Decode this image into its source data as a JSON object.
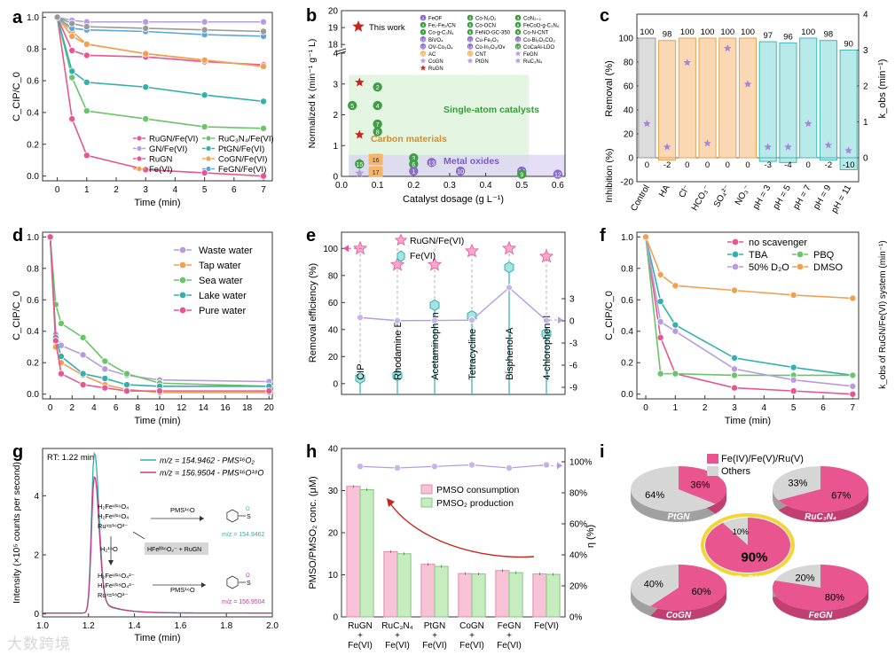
{
  "watermark": "大数跨境",
  "colors": {
    "pink": "#e8558f",
    "violet": "#b79be0",
    "green": "#6ac46a",
    "orange": "#f0a050",
    "teal": "#31b0ad",
    "blue": "#5aa6dc",
    "gray": "#9a9a9a",
    "red": "#c8261c",
    "star_pink": "#f9a8cf",
    "teal_light": "#b9eaea",
    "orange_light": "#fbd8b4",
    "gray_light": "#dcdcdc",
    "pink_light": "#f8c3d6",
    "green_light": "#c7ecc0"
  },
  "panels": {
    "a": "a",
    "b": "b",
    "c": "c",
    "d": "d",
    "e": "e",
    "f": "f",
    "g": "g",
    "h": "h",
    "i": "i"
  },
  "chart_data": [
    {
      "id": "a",
      "type": "line",
      "xlabel": "Time (min)",
      "ylabel": "C_CIP/C_0",
      "xlim": [
        -0.5,
        7.3
      ],
      "ylim": [
        -0.03,
        1.03
      ],
      "xticks": [
        0,
        1,
        2,
        3,
        4,
        5,
        6,
        7
      ],
      "yticks": [
        0.0,
        0.2,
        0.4,
        0.6,
        0.8,
        1.0
      ],
      "x": [
        0,
        0.5,
        1,
        3,
        5,
        7
      ],
      "series": [
        {
          "name": "RuGN/Fe(VI)",
          "color": "#e8558f",
          "values": [
            1.0,
            0.36,
            0.13,
            0.04,
            0.02,
            0.0
          ]
        },
        {
          "name": "GN/Fe(VI)",
          "color": "#b79be0",
          "values": [
            1.0,
            0.98,
            0.97,
            0.97,
            0.97,
            0.97
          ]
        },
        {
          "name": "RuGN",
          "color": "#e8558f",
          "values": [
            1.0,
            0.79,
            0.76,
            0.75,
            0.72,
            0.7
          ]
        },
        {
          "name": "Fe(VI)",
          "color": "#f0a050",
          "values": [
            1.0,
            0.91,
            0.83,
            0.77,
            0.73,
            0.69
          ]
        },
        {
          "name": "RuC3N4/Fe(VI)",
          "color": "#6ac46a",
          "values": [
            1.0,
            0.62,
            0.41,
            0.36,
            0.31,
            0.3
          ]
        },
        {
          "name": "PtGN/Fe(VI)",
          "color": "#31b0ad",
          "values": [
            1.0,
            0.66,
            0.59,
            0.56,
            0.51,
            0.47
          ]
        },
        {
          "name": "CoGN/Fe(VI)",
          "color": "#f0a050",
          "values": [
            1.0,
            0.88,
            0.83,
            0.77,
            0.73,
            0.69
          ]
        },
        {
          "name": "FeGN/Fe(VI)",
          "color": "#5aa6dc",
          "values": [
            1.0,
            0.93,
            0.92,
            0.91,
            0.89,
            0.88
          ]
        },
        {
          "name": "",
          "color": "#9a9a9a",
          "values": [
            1.0,
            0.96,
            0.94,
            0.93,
            0.92,
            0.91
          ]
        }
      ],
      "legend": [
        "RuGN/Fe(VI)",
        "RuC₃N₄/Fe(VI)",
        "GN/Fe(VI)",
        "PtGN/Fe(VI)",
        "RuGN",
        "CoGN/Fe(VI)",
        "Fe(VI)",
        "FeGN/Fe(VI)"
      ]
    },
    {
      "id": "b",
      "type": "scatter",
      "xlabel": "Catalyst dosage (g L⁻¹)",
      "ylabel": "Normalized k (min⁻¹ g⁻¹ L)",
      "xlim": [
        0,
        0.62
      ],
      "xticks": [
        0.0,
        0.1,
        0.2,
        0.3,
        0.4,
        0.5,
        0.6
      ],
      "yticks_low": [
        0,
        1,
        2,
        3,
        4
      ],
      "yticks_high": [
        18,
        19,
        20
      ],
      "regions": [
        "Single-atom catalysts",
        "Carbon materials",
        "Metal oxides"
      ],
      "this_work": "This work",
      "points": [
        {
          "x": 0.05,
          "y": 3.05,
          "label": "",
          "kind": "star"
        },
        {
          "x": 0.05,
          "y": 1.35,
          "label": "",
          "kind": "star"
        },
        {
          "x": 0.05,
          "y": 0.45,
          "label": "",
          "kind": "star"
        },
        {
          "x": 0.05,
          "y": 0.1,
          "label": "",
          "kind": "star"
        },
        {
          "x": 0.1,
          "y": 2.9,
          "label": "2",
          "kind": "green"
        },
        {
          "x": 0.1,
          "y": 2.3,
          "label": "4",
          "kind": "green"
        },
        {
          "x": 0.1,
          "y": 1.7,
          "label": "7",
          "kind": "green"
        },
        {
          "x": 0.1,
          "y": 1.45,
          "label": "8",
          "kind": "green"
        },
        {
          "x": 0.03,
          "y": 2.3,
          "label": "5",
          "kind": "green"
        },
        {
          "x": 0.05,
          "y": 0.4,
          "label": "15",
          "kind": "green"
        },
        {
          "x": 0.095,
          "y": 0.55,
          "label": "16",
          "kind": "orange"
        },
        {
          "x": 0.095,
          "y": 0.15,
          "label": "17",
          "kind": "orange"
        },
        {
          "x": 0.2,
          "y": 0.6,
          "label": "3",
          "kind": "green"
        },
        {
          "x": 0.2,
          "y": 0.4,
          "label": "6",
          "kind": "green"
        },
        {
          "x": 0.2,
          "y": 0.17,
          "label": "1",
          "kind": "violet"
        },
        {
          "x": 0.25,
          "y": 0.45,
          "label": "13",
          "kind": "violet"
        },
        {
          "x": 0.33,
          "y": 0.17,
          "label": "10",
          "kind": "violet"
        },
        {
          "x": 0.5,
          "y": 0.17,
          "label": "14",
          "kind": "violet"
        },
        {
          "x": 0.5,
          "y": 0.07,
          "label": "9",
          "kind": "green"
        },
        {
          "x": 0.6,
          "y": 0.07,
          "label": "12",
          "kind": "violet"
        }
      ],
      "legend": [
        {
          "n": "1",
          "t": "FeOF"
        },
        {
          "n": "2",
          "t": "Co-N₂O₂"
        },
        {
          "n": "3",
          "t": "CoN₂₊₂"
        },
        {
          "n": "4",
          "t": "Fe₁-Fe₂/CN"
        },
        {
          "n": "5",
          "t": "Co-OCN"
        },
        {
          "n": "6",
          "t": "FeCoO-g-C₃N₄"
        },
        {
          "n": "7",
          "t": "Co-g-C₃N₄"
        },
        {
          "n": "8",
          "t": "FeNO-GC-350"
        },
        {
          "n": "9",
          "t": "Co-N-CNT"
        },
        {
          "n": "10",
          "t": "BiVO₄"
        },
        {
          "n": "11",
          "t": "Cu-Fe₂O₃"
        },
        {
          "n": "12",
          "t": "Co-Bi₂O₂CO₃"
        },
        {
          "n": "13",
          "t": "OV-Co₃O₄"
        },
        {
          "n": "14",
          "t": "Co-In₂O₃/Ov"
        },
        {
          "n": "15",
          "t": "CoCaAl-LDO"
        },
        {
          "n": "16",
          "t": "AC"
        },
        {
          "n": "17",
          "t": "CNT"
        },
        {
          "n": "",
          "t": "FeGN"
        },
        {
          "n": "",
          "t": "CoGN"
        },
        {
          "n": "",
          "t": "PtGN"
        },
        {
          "n": "",
          "t": "RuC₃N₄"
        },
        {
          "n": "",
          "t": "RuGN"
        }
      ]
    },
    {
      "id": "c",
      "type": "bar",
      "ylabel": "Removal (%)",
      "ylabel_low": "Inhibition (%)",
      "ylabel_right": "k_obs (min⁻¹)",
      "categories": [
        "Control",
        "HA",
        "Cl⁻",
        "HCO₃⁻",
        "SO₄²⁻",
        "NO₃⁻",
        "pH = 3",
        "pH = 5",
        "pH = 7",
        "pH = 9",
        "pH = 11"
      ],
      "removal": [
        100,
        98,
        100,
        100,
        100,
        100,
        97,
        96,
        100,
        98,
        90
      ],
      "inhibition": [
        0,
        -2,
        0,
        0,
        0,
        0,
        -3,
        -4,
        0,
        -2,
        -10
      ],
      "k_obs": [
        0.95,
        0.3,
        2.65,
        0.4,
        3.05,
        2.05,
        0.3,
        0.3,
        0.95,
        0.35,
        0.2
      ],
      "yticks": [
        0,
        20,
        40,
        60,
        80,
        100
      ],
      "yticks_low": [
        0,
        -20
      ],
      "yticks_right": [
        0,
        1,
        2,
        3,
        4
      ]
    },
    {
      "id": "d",
      "type": "line",
      "xlabel": "Time (min)",
      "ylabel": "C_CIP/C_0",
      "xlim": [
        -0.7,
        20.3
      ],
      "ylim": [
        -0.03,
        1.03
      ],
      "xticks": [
        0,
        2,
        4,
        6,
        8,
        10,
        12,
        14,
        16,
        18,
        20
      ],
      "yticks": [
        0.0,
        0.2,
        0.4,
        0.6,
        0.8,
        1.0
      ],
      "x": [
        0,
        0.5,
        1,
        3,
        5,
        7,
        10,
        20
      ],
      "series": [
        {
          "name": "Waste water",
          "color": "#b79be0",
          "values": [
            1.0,
            0.38,
            0.31,
            0.25,
            0.16,
            0.12,
            0.09,
            0.08
          ]
        },
        {
          "name": "Tap water",
          "color": "#f0a050",
          "values": [
            1.0,
            0.3,
            0.2,
            0.12,
            0.06,
            0.03,
            0.01,
            0.01
          ]
        },
        {
          "name": "Sea water",
          "color": "#6ac46a",
          "values": [
            1.0,
            0.57,
            0.45,
            0.36,
            0.21,
            0.13,
            0.07,
            0.05
          ]
        },
        {
          "name": "Lake water",
          "color": "#31b0ad",
          "values": [
            1.0,
            0.36,
            0.24,
            0.13,
            0.1,
            0.06,
            0.05,
            0.05
          ]
        },
        {
          "name": "Pure water",
          "color": "#e8558f",
          "values": [
            1.0,
            0.34,
            0.13,
            0.06,
            0.04,
            0.02,
            0.02,
            0.02
          ]
        }
      ]
    },
    {
      "id": "e",
      "type": "scatter",
      "ylabel": "Removal efficiency (%)",
      "ylabel_right": "k_obs of RuGN/Fe(VI) system (min⁻¹)",
      "categories": [
        "CIP",
        "Rhodamine B",
        "Acetaminophen",
        "Tetracycline",
        "Bisphenol-A",
        "4-chlorophenol"
      ],
      "series": [
        {
          "name": "RuGN/Fe(VI)",
          "values": [
            100,
            88,
            88,
            98,
            100,
            94
          ]
        },
        {
          "name": "Fe(VI)",
          "values": [
            4,
            6,
            58,
            50,
            86,
            37
          ]
        }
      ],
      "k_obs": [
        0.45,
        0.03,
        0.05,
        0.1,
        4.5,
        0.05
      ],
      "yticks": [
        0,
        20,
        40,
        60,
        80,
        100
      ],
      "yticks_right": [
        3,
        0,
        -3,
        -6,
        -9
      ]
    },
    {
      "id": "f",
      "type": "line",
      "xlabel": "Time (min)",
      "ylabel": "C_CIP/C_0",
      "xlim": [
        -0.3,
        7.2
      ],
      "ylim": [
        -0.03,
        1.03
      ],
      "xticks": [
        0,
        1,
        2,
        3,
        4,
        5,
        6,
        7
      ],
      "yticks": [
        0.0,
        0.2,
        0.4,
        0.6,
        0.8,
        1.0
      ],
      "x": [
        0,
        0.5,
        1,
        3,
        5,
        7
      ],
      "series": [
        {
          "name": "no scavenger",
          "color": "#e8558f",
          "values": [
            1.0,
            0.36,
            0.13,
            0.04,
            0.02,
            0.0
          ]
        },
        {
          "name": "TBA",
          "color": "#31b0ad",
          "values": [
            1.0,
            0.59,
            0.44,
            0.23,
            0.17,
            0.12
          ]
        },
        {
          "name": "PBQ",
          "color": "#6ac46a",
          "values": [
            1.0,
            0.13,
            0.13,
            0.12,
            0.12,
            0.12
          ]
        },
        {
          "name": "50% D₂O",
          "color": "#b79be0",
          "values": [
            1.0,
            0.46,
            0.4,
            0.16,
            0.09,
            0.05
          ]
        },
        {
          "name": "DMSO",
          "color": "#f0a050",
          "values": [
            1.0,
            0.76,
            0.69,
            0.66,
            0.63,
            0.61
          ]
        }
      ]
    },
    {
      "id": "g",
      "type": "line",
      "xlabel": "Time (min)",
      "ylabel": "Intensity (×10⁵ counts per second)",
      "xlim": [
        1.0,
        2.0
      ],
      "ylim": [
        -0.1,
        5.6
      ],
      "xticks": [
        1.0,
        1.2,
        1.4,
        1.6,
        1.8,
        2.0
      ],
      "yticks": [
        0,
        2,
        4
      ],
      "rt": "RT: 1.22 min",
      "series": [
        {
          "name": "m/z = 154.9462 - PMS¹⁶O₂",
          "color": "#31b0ad"
        },
        {
          "name": "m/z = 156.9504 - PMS¹⁶O¹⁸O",
          "color": "#c83a8a"
        }
      ],
      "peak": {
        "x": 1.225,
        "y_teal": 5.4,
        "y_pink": 4.6
      },
      "scheme": {
        "h2fe1": "H₂Feᵛᴵ¹⁶O₄",
        "h2fe2": "H₂Feᵛᴵ¹⁶O₄",
        "ru1": "Ruᵛ=¹⁶O³⁻",
        "pms1": "PMS¹⁶O",
        "mz1": "m/z = 154.9462",
        "h2o": "H₂¹⁸O",
        "hfe": "HFeᴵᴵᴵ¹⁶O₂⁻ + RuGN",
        "h2fe3": "H₂Feᵛᴵ¹⁶O₄²⁻",
        "h2fe4": "H₂Feᵛᴵ¹⁸O₄²⁻",
        "ru2": "Ruᵛ=¹⁸O³⁻",
        "pms2": "PMS¹⁶O",
        "mz2": "m/z = 156.9504"
      }
    },
    {
      "id": "h",
      "type": "bar",
      "ylabel": "PMSO/PMSO₂ conc. (μM)",
      "ylabel_right": "η (%)",
      "categories": [
        "RuGN + Fe(VI)",
        "RuC₃N₄ + Fe(VI)",
        "PtGN + Fe(VI)",
        "CoGN + Fe(VI)",
        "FeGN + Fe(VI)",
        "Fe(VI)"
      ],
      "series": [
        {
          "name": "PMSO consumption",
          "color": "#f8c3d6",
          "values": [
            31,
            15.5,
            12.5,
            10.3,
            11,
            10.2
          ]
        },
        {
          "name": "PMSO₂ production",
          "color": "#c7ecc0",
          "values": [
            30.2,
            15,
            12,
            10.2,
            10.5,
            10.1
          ]
        }
      ],
      "eta": [
        97,
        96,
        97,
        98,
        96,
        98
      ],
      "yticks": [
        0,
        10,
        20,
        30,
        40
      ],
      "yticks_right": [
        0,
        20,
        40,
        60,
        80,
        100
      ]
    },
    {
      "id": "i",
      "type": "pie",
      "legend": [
        "Fe(IV)/Fe(V)/Ru(V)",
        "Others"
      ],
      "pies": [
        {
          "name": "PtGN",
          "major": 36,
          "minor": 64
        },
        {
          "name": "RuC₃N₄",
          "major": 67,
          "minor": 33
        },
        {
          "name": "RuGN",
          "major": 90,
          "minor": 10
        },
        {
          "name": "CoGN",
          "major": 60,
          "minor": 40
        },
        {
          "name": "FeGN",
          "major": 80,
          "minor": 20
        }
      ]
    }
  ]
}
